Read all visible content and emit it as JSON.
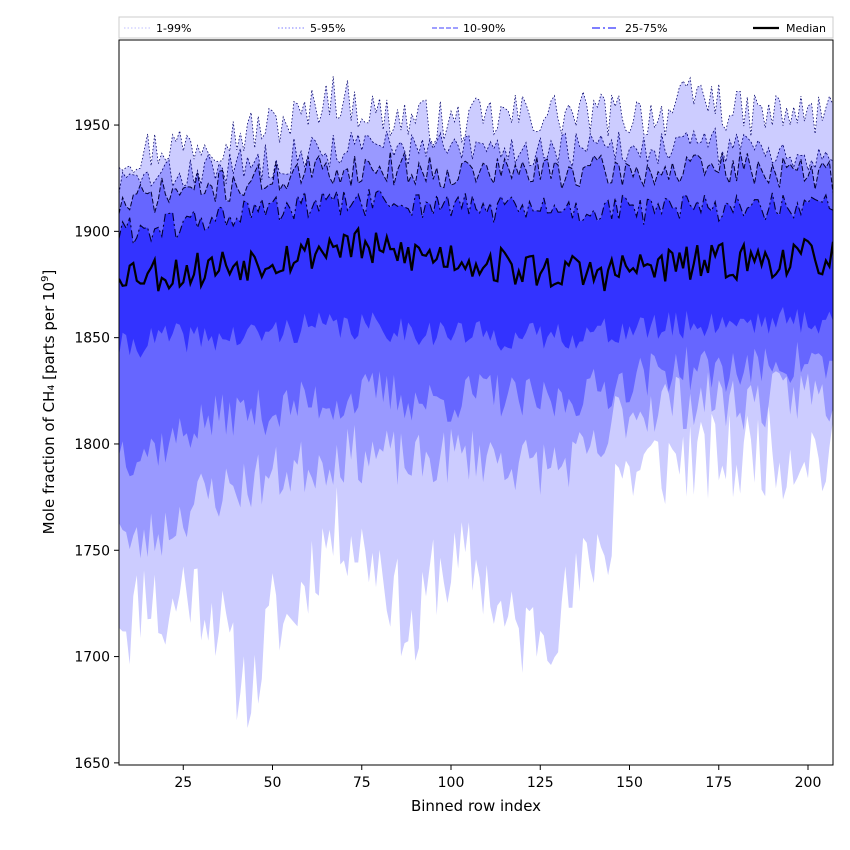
{
  "chart_data": {
    "type": "area",
    "xlabel": "Binned row index",
    "ylabel_main": "Mole fraction of CH₄ [parts per 10",
    "ylabel_exp": "9",
    "ylabel_close": "]",
    "xlim": [
      7,
      207
    ],
    "ylim": [
      1649,
      1990
    ],
    "xticks": [
      25,
      50,
      75,
      100,
      125,
      150,
      175,
      200
    ],
    "xtick_labels": [
      "25",
      "50",
      "75",
      "100",
      "125",
      "150",
      "175",
      "200"
    ],
    "yticks": [
      1650,
      1700,
      1750,
      1800,
      1850,
      1900,
      1950
    ],
    "ytick_labels": [
      "1650",
      "1700",
      "1750",
      "1800",
      "1850",
      "1900",
      "1950"
    ],
    "grid": false,
    "legend_position": "top",
    "legend": [
      {
        "label": "1-99%",
        "color": "#ccccff",
        "style": "dotted"
      },
      {
        "label": "5-95%",
        "color": "#9999ff",
        "style": "dotted"
      },
      {
        "label": "10-90%",
        "color": "#6666ff",
        "style": "dashed"
      },
      {
        "label": "25-75%",
        "color": "#3333ff",
        "style": "dashdot"
      },
      {
        "label": "Median",
        "color": "#000000",
        "style": "solid"
      }
    ],
    "x_start": 7,
    "x_end": 207,
    "x_step": 1,
    "bands": {
      "p1": {
        "color": "#ccccff",
        "anchors_x": [
          7,
          10,
          15,
          20,
          25,
          30,
          35,
          40,
          45,
          50,
          55,
          60,
          65,
          70,
          75,
          80,
          85,
          90,
          95,
          100,
          105,
          110,
          115,
          120,
          125,
          130,
          135,
          140,
          145,
          146,
          150,
          155,
          160,
          165,
          170,
          175,
          180,
          185,
          190,
          195,
          200,
          205,
          207
        ],
        "anchors_y": [
          1725,
          1715,
          1735,
          1712,
          1735,
          1728,
          1718,
          1690,
          1685,
          1720,
          1715,
          1740,
          1755,
          1760,
          1750,
          1745,
          1725,
          1705,
          1740,
          1740,
          1745,
          1735,
          1715,
          1710,
          1715,
          1720,
          1730,
          1750,
          1755,
          1790,
          1785,
          1790,
          1790,
          1795,
          1790,
          1795,
          1790,
          1800,
          1795,
          1795,
          1800,
          1790,
          1790
        ],
        "amp": 22,
        "seed": 11
      },
      "p5": {
        "color": "#ccccff",
        "anchors_x": [
          7,
          10,
          20,
          30,
          40,
          50,
          60,
          70,
          80,
          90,
          100,
          110,
          120,
          130,
          140,
          145,
          146,
          150,
          160,
          170,
          180,
          190,
          200,
          207
        ],
        "anchors_y": [
          1770,
          1750,
          1760,
          1775,
          1780,
          1785,
          1790,
          1795,
          1795,
          1790,
          1795,
          1795,
          1790,
          1790,
          1795,
          1800,
          1815,
          1815,
          1820,
          1820,
          1820,
          1820,
          1825,
          1820
        ],
        "amp": 14,
        "seed": 23
      },
      "p10": {
        "color": "#9999ff",
        "anchors_x": [
          7,
          10,
          20,
          30,
          40,
          50,
          60,
          70,
          80,
          90,
          100,
          110,
          120,
          130,
          140,
          150,
          160,
          170,
          180,
          190,
          200,
          207
        ],
        "anchors_y": [
          1800,
          1795,
          1800,
          1810,
          1815,
          1815,
          1820,
          1820,
          1825,
          1820,
          1820,
          1825,
          1820,
          1820,
          1825,
          1830,
          1835,
          1835,
          1835,
          1835,
          1840,
          1835
        ],
        "amp": 11,
        "seed": 37
      },
      "p25": {
        "color": "#6666ff",
        "anchors_x": [
          7,
          20,
          40,
          60,
          80,
          100,
          120,
          140,
          160,
          180,
          207
        ],
        "anchors_y": [
          1845,
          1850,
          1850,
          1855,
          1855,
          1852,
          1850,
          1852,
          1855,
          1858,
          1858
        ],
        "amp": 7,
        "seed": 41
      },
      "p50": {
        "color": "#000000",
        "anchors_x": [
          7,
          20,
          40,
          60,
          70,
          80,
          100,
          120,
          140,
          160,
          180,
          207
        ],
        "anchors_y": [
          1882,
          1880,
          1885,
          1890,
          1895,
          1890,
          1888,
          1882,
          1880,
          1884,
          1886,
          1888
        ],
        "amp": 9,
        "seed": 53
      },
      "p75": {
        "color": "#3333ff",
        "anchors_x": [
          7,
          20,
          40,
          60,
          80,
          100,
          120,
          140,
          160,
          180,
          207
        ],
        "anchors_y": [
          1900,
          1902,
          1908,
          1912,
          1914,
          1912,
          1910,
          1910,
          1910,
          1912,
          1910
        ],
        "amp": 7,
        "seed": 61
      },
      "p90": {
        "color": "#6666ff",
        "anchors_x": [
          7,
          20,
          40,
          60,
          80,
          100,
          120,
          140,
          160,
          180,
          207
        ],
        "anchors_y": [
          1912,
          1918,
          1922,
          1928,
          1930,
          1928,
          1928,
          1928,
          1928,
          1930,
          1926
        ],
        "amp": 8,
        "seed": 71
      },
      "p95": {
        "color": "#9999ff",
        "anchors_x": [
          7,
          20,
          40,
          60,
          80,
          100,
          120,
          140,
          160,
          180,
          207
        ],
        "anchors_y": [
          1922,
          1925,
          1930,
          1938,
          1940,
          1938,
          1938,
          1938,
          1940,
          1940,
          1935
        ],
        "amp": 9,
        "seed": 83
      },
      "p99": {
        "color": "#ccccff",
        "anchors_x": [
          7,
          20,
          40,
          60,
          65,
          80,
          100,
          120,
          140,
          160,
          170,
          180,
          207
        ],
        "anchors_y": [
          1935,
          1940,
          1945,
          1955,
          1965,
          1955,
          1950,
          1955,
          1955,
          1955,
          1965,
          1955,
          1955
        ],
        "amp": 11,
        "seed": 97
      }
    }
  }
}
